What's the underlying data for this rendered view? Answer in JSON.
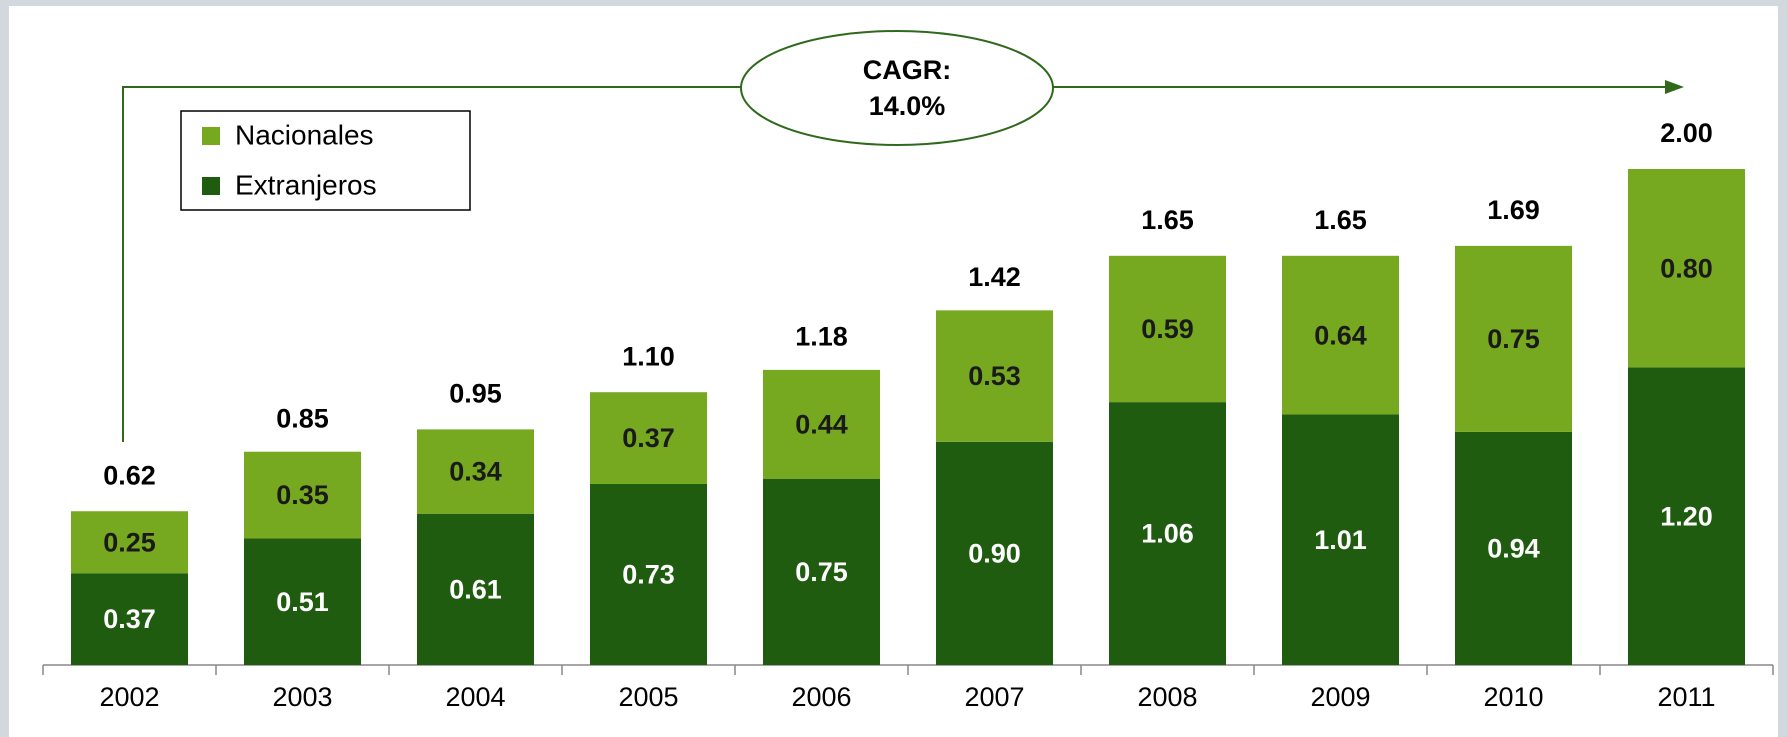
{
  "chart_data": {
    "type": "stacked_bar",
    "categories": [
      "2002",
      "2003",
      "2004",
      "2005",
      "2006",
      "2007",
      "2008",
      "2009",
      "2010",
      "2011"
    ],
    "series": [
      {
        "name": "Extranjeros",
        "color": "#1f5c10",
        "values": [
          0.37,
          0.51,
          0.61,
          0.73,
          0.75,
          0.9,
          1.06,
          1.01,
          0.94,
          1.2
        ],
        "value_labels": [
          "0.37",
          "0.51",
          "0.61",
          "0.73",
          "0.75",
          "0.90",
          "1.06",
          "1.01",
          "0.94",
          "1.20"
        ]
      },
      {
        "name": "Nacionales",
        "color": "#76a820",
        "values": [
          0.25,
          0.35,
          0.34,
          0.37,
          0.44,
          0.53,
          0.59,
          0.64,
          0.75,
          0.8
        ],
        "value_labels": [
          "0.25",
          "0.35",
          "0.34",
          "0.37",
          "0.44",
          "0.53",
          "0.59",
          "0.64",
          "0.75",
          "0.80"
        ]
      }
    ],
    "totals": {
      "values": [
        0.62,
        0.85,
        0.95,
        1.1,
        1.18,
        1.42,
        1.65,
        1.65,
        1.69,
        2.0
      ],
      "value_labels": [
        "0.62",
        "0.85",
        "0.95",
        "1.10",
        "1.18",
        "1.42",
        "1.65",
        "1.65",
        "1.69",
        "2.00"
      ]
    },
    "annotation": {
      "label": "CAGR:",
      "value": "14.0%"
    },
    "legend": "upper left"
  }
}
